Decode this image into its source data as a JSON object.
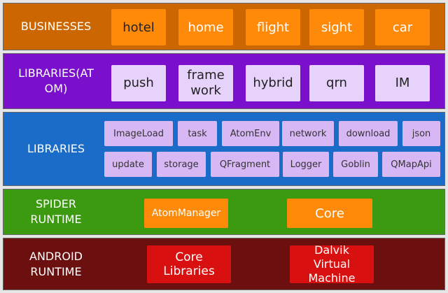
{
  "layers": {
    "businesses": {
      "title": "BUSINESSES",
      "items": [
        "hotel",
        "home",
        "flight",
        "sight",
        "car"
      ]
    },
    "atom_libraries": {
      "title": "LIBRARIES(AT\nOM)",
      "items": [
        "push",
        "frame\nwork",
        "hybrid",
        "qrn",
        "IM"
      ]
    },
    "libraries": {
      "title": "LIBRARIES",
      "row1": [
        "ImageLoad",
        "task",
        "AtomEnv",
        "network",
        "download",
        "json"
      ],
      "row2": [
        "update",
        "storage",
        "QFragment",
        "Logger",
        "Goblin",
        "QMapApi"
      ]
    },
    "spider_runtime": {
      "title": "SPIDER\nRUNTIME",
      "items": [
        "AtomManager",
        "Core"
      ]
    },
    "android_runtime": {
      "title": "ANDROID\nRUNTIME",
      "items": [
        "Core\nLibraries",
        "Dalvik\nVirtual\nMachine"
      ]
    }
  },
  "colors": {
    "businesses": "#cc6600",
    "atom_libraries": "#7a0fcc",
    "libraries": "#1a6cc8",
    "spider_runtime": "#3c9a10",
    "android_runtime": "#6b0f0f",
    "orange_box": "#ff8a0a",
    "lilac_box": "#d7b8f5",
    "red_box": "#d81010"
  }
}
